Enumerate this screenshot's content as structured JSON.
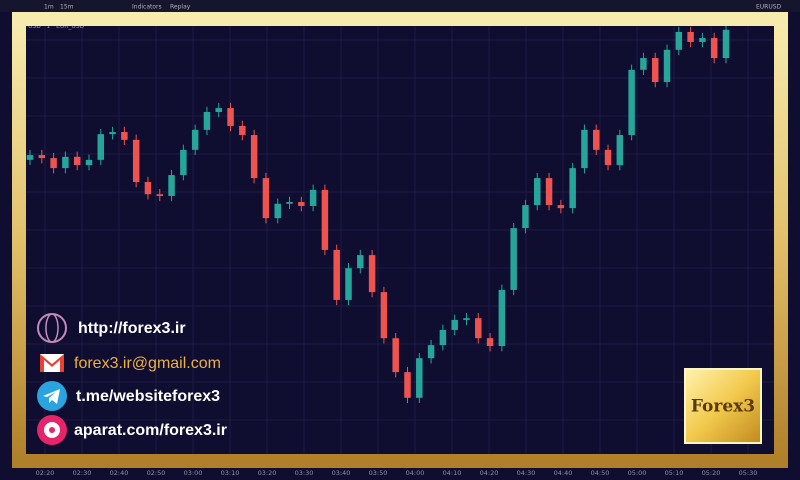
{
  "toolbar": {
    "intervals": [
      "1m",
      "15m"
    ],
    "indicators": "Indicators",
    "replay": "Replay",
    "symbol": "EURUSD"
  },
  "chart_data": {
    "type": "candlestick",
    "title": "USD · 1 · EUR_USD",
    "categories": [
      "02:20",
      "02:30",
      "02:40",
      "02:50",
      "03:00",
      "03:10",
      "03:20",
      "03:30",
      "03:40",
      "03:50",
      "04:00",
      "04:10",
      "04:20",
      "04:30",
      "04:40",
      "04:50",
      "05:00",
      "05:10",
      "05:20",
      "05:30"
    ],
    "ylim": [
      0,
      100
    ],
    "grid": true,
    "up_color": "#26a69a",
    "down_color": "#ef5350",
    "open": [
      69.0,
      70.1,
      69.4,
      67.1,
      69.7,
      67.8,
      69.0,
      74.9,
      75.4,
      73.6,
      63.9,
      61.1,
      60.7,
      65.5,
      71.3,
      75.9,
      80.0,
      80.9,
      76.8,
      74.7,
      64.8,
      55.6,
      58.9,
      59.3,
      58.4,
      62.1,
      48.3,
      36.8,
      44.1,
      47.1,
      38.6,
      28.0,
      20.2,
      14.3,
      23.4,
      26.4,
      29.9,
      32.2,
      32.6,
      28.0,
      26.2,
      39.1,
      53.3,
      58.6,
      64.8,
      58.6,
      57.9,
      67.1,
      75.9,
      71.3,
      67.8,
      74.7,
      89.7,
      92.4,
      86.9,
      94.3,
      98.4,
      96.1,
      97.0,
      92.4
    ],
    "high": [
      71.3,
      71.3,
      70.6,
      70.9,
      70.9,
      70.2,
      76.1,
      76.6,
      76.6,
      74.8,
      65.1,
      62.3,
      66.7,
      72.5,
      77.1,
      81.2,
      82.1,
      82.1,
      78.0,
      75.9,
      66.0,
      60.1,
      60.5,
      60.5,
      63.3,
      63.3,
      49.5,
      45.3,
      48.3,
      48.3,
      39.8,
      29.2,
      21.4,
      24.6,
      27.6,
      31.1,
      33.4,
      33.8,
      33.8,
      29.2,
      40.3,
      54.5,
      59.8,
      66.0,
      66.0,
      59.8,
      68.3,
      77.1,
      77.1,
      72.5,
      75.9,
      90.9,
      93.6,
      93.6,
      95.5,
      99.6,
      99.6,
      98.2,
      98.2,
      100.0
    ],
    "low": [
      67.8,
      68.2,
      65.9,
      65.9,
      66.6,
      66.6,
      67.8,
      73.7,
      72.4,
      62.7,
      59.9,
      59.5,
      59.5,
      64.3,
      70.1,
      74.7,
      78.8,
      75.6,
      73.5,
      63.6,
      54.4,
      54.4,
      57.7,
      57.2,
      57.2,
      47.1,
      35.6,
      35.6,
      42.9,
      37.4,
      26.8,
      19.0,
      13.1,
      13.1,
      22.2,
      25.2,
      28.7,
      31.0,
      26.8,
      25.0,
      25.0,
      37.9,
      52.1,
      57.4,
      57.4,
      56.7,
      56.7,
      65.9,
      70.1,
      66.6,
      66.6,
      73.5,
      88.5,
      85.7,
      85.7,
      93.1,
      94.9,
      94.9,
      91.2,
      91.2
    ],
    "close": [
      70.1,
      69.4,
      67.1,
      69.7,
      67.8,
      69.0,
      74.9,
      75.4,
      73.6,
      63.9,
      61.1,
      60.7,
      65.5,
      71.3,
      75.9,
      80.0,
      80.9,
      76.8,
      74.7,
      64.8,
      55.6,
      58.9,
      59.3,
      58.4,
      62.1,
      48.3,
      36.8,
      44.1,
      47.1,
      38.6,
      28.0,
      20.2,
      14.3,
      23.4,
      26.4,
      29.9,
      32.2,
      32.6,
      28.0,
      26.2,
      39.1,
      53.3,
      58.6,
      64.8,
      58.6,
      57.9,
      67.1,
      75.9,
      71.3,
      67.8,
      74.7,
      89.7,
      92.4,
      86.9,
      94.3,
      98.4,
      96.1,
      97.0,
      92.4,
      98.9
    ]
  },
  "contacts": {
    "website": "http://forex3.ir",
    "email": "forex3.ir@gmail.com",
    "telegram": "t.me/websiteforex3",
    "aparat": "aparat.com/forex3.ir"
  },
  "logo": "Forex3"
}
